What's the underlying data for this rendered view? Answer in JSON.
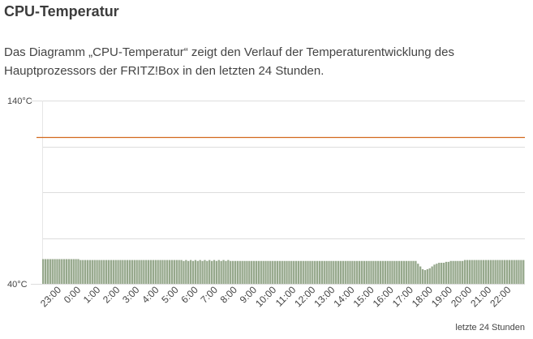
{
  "page": {
    "title": "CPU-Temperatur",
    "description": "Das Diagramm „CPU-Temperatur“ zeigt den Verlauf der Temperaturentwicklung des Hauptprozessors der FRITZ!Box in den letzten 24 Stunden."
  },
  "chart_data": {
    "type": "bar",
    "title": "CPU-Temperatur",
    "xlabel": "letzte 24 Stunden",
    "ylabel": "",
    "ylim": [
      40,
      140
    ],
    "y_tick_labels": [
      "40°C",
      "140°C"
    ],
    "y_gridlines": [
      40,
      65,
      90,
      115,
      140
    ],
    "threshold": {
      "value": 120,
      "color": "#d2691e"
    },
    "bar_color": "#96a88c",
    "x_tick_labels": [
      "23:00",
      "0:00",
      "1:00",
      "2:00",
      "3:00",
      "4:00",
      "5:00",
      "6:00",
      "7:00",
      "8:00",
      "9:00",
      "10:00",
      "11:00",
      "12:00",
      "13:00",
      "14:00",
      "15:00",
      "16:00",
      "17:00",
      "18:00",
      "19:00",
      "20:00",
      "21:00",
      "22:00"
    ],
    "series": [
      {
        "name": "CPU-Temperatur",
        "unit": "°C",
        "values": [
          53.5,
          53.5,
          53.5,
          53.5,
          53.5,
          53.5,
          53.5,
          53.5,
          53.5,
          53.5,
          53.5,
          53.5,
          53.5,
          53.5,
          53.5,
          53.5,
          53,
          53,
          53,
          53,
          53,
          53,
          53,
          53,
          53,
          53,
          53,
          53,
          53,
          53,
          53,
          53,
          53,
          53,
          53,
          53,
          53,
          53,
          53,
          53,
          53,
          53,
          53,
          53,
          53,
          53,
          53,
          53,
          53,
          53,
          53,
          53,
          53,
          53,
          53,
          53,
          53,
          53,
          53,
          53,
          52.5,
          53,
          52.5,
          53,
          52.5,
          53,
          52.5,
          53,
          52.5,
          53,
          52.5,
          53,
          52.5,
          53,
          52.5,
          53,
          52.5,
          53,
          52.5,
          53,
          52.5,
          52.5,
          52.5,
          52.5,
          52.5,
          52.5,
          52.5,
          52.5,
          52.5,
          52.5,
          52.5,
          52.5,
          52.5,
          52.5,
          52.5,
          52.5,
          52.5,
          52.5,
          52.5,
          52.5,
          52.5,
          52.5,
          52.5,
          52.5,
          52.5,
          52.5,
          52.5,
          52.5,
          52.5,
          52.5,
          52.5,
          52.5,
          52.5,
          52.5,
          52.5,
          52.5,
          52.5,
          52.5,
          52.5,
          52.5,
          52.5,
          52.5,
          52.5,
          52.5,
          52.5,
          52.5,
          52.5,
          52.5,
          52.5,
          52.5,
          52.5,
          52.5,
          52.5,
          52.5,
          52.5,
          52.5,
          52.5,
          52.5,
          52.5,
          52.5,
          52.5,
          52.5,
          52.5,
          52.5,
          52.5,
          52.5,
          52.5,
          52.5,
          52.5,
          52.5,
          52.5,
          52.5,
          52.5,
          52.5,
          52.5,
          52.5,
          52.5,
          52.5,
          52.5,
          52.5,
          51,
          49.5,
          48,
          47.5,
          48,
          48.5,
          49.5,
          50.5,
          51,
          51.5,
          51.5,
          51.5,
          52,
          52,
          52.5,
          52.5,
          52.5,
          52.5,
          52.5,
          52.5,
          53,
          53,
          53,
          53,
          53,
          53,
          53,
          53,
          53,
          53,
          53,
          53,
          53,
          53,
          53,
          53,
          53,
          53,
          53,
          53,
          53,
          53,
          53,
          53,
          53,
          53
        ]
      }
    ]
  }
}
